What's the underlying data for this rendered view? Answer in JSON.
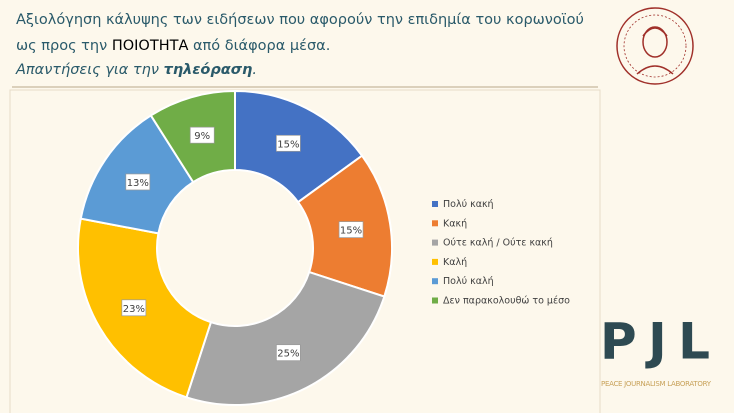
{
  "header": {
    "title": [
      [
        "Αξιολόγηση κάλυψης των ειδήσεων που αφορούν την επιδημία του κορωνοϊού"
      ],
      [
        "ως προς την",
        "ΠΟΙΟΤΗΤΑ",
        "από διάφορα μέσα."
      ],
      [
        "Απαντήσεις για την",
        "τηλεόραση",
        "."
      ]
    ]
  },
  "chart_data": {
    "type": "donut",
    "categories": [
      "Πολύ κακή",
      "Κακή",
      "Ούτε καλή / Ούτε κακή",
      "Καλή",
      "Πολύ καλή",
      "Δεν παρακολουθώ το μέσο"
    ],
    "values": [
      15,
      15,
      25,
      23,
      13,
      9
    ],
    "value_labels": [
      "15%",
      "15%",
      "25%",
      "23%",
      "13%",
      "9%"
    ],
    "colors": [
      "#4472c4",
      "#ed7d31",
      "#a5a5a5",
      "#ffc000",
      "#5b9bd5",
      "#70ad47"
    ],
    "legend": "right"
  },
  "logo": {
    "mark": "PJL",
    "name": "PEACE JOURNALISM LABORATORY"
  }
}
